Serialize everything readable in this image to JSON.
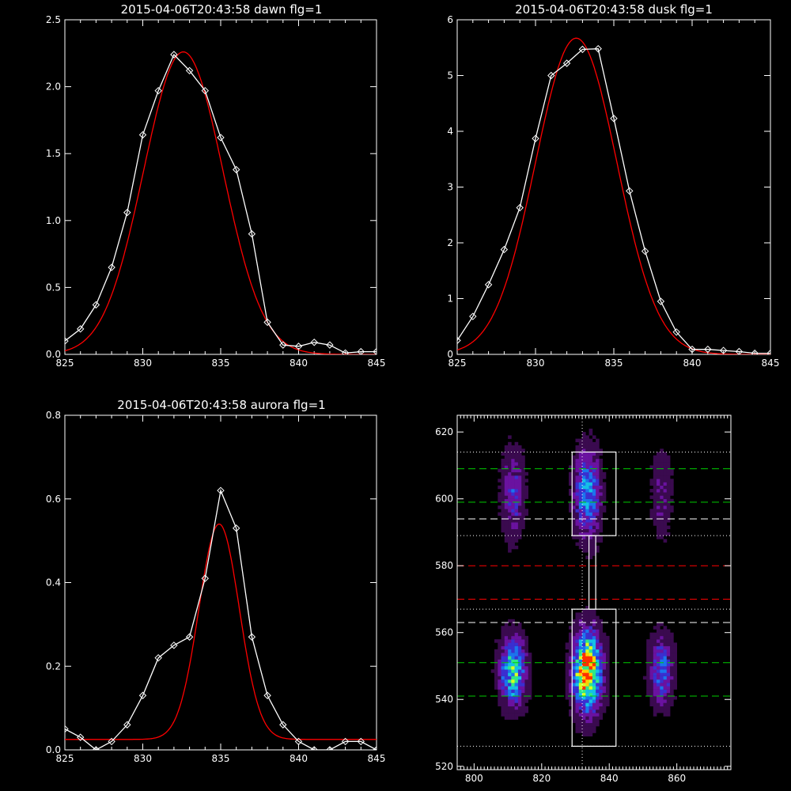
{
  "colors": {
    "background": "#000000",
    "axes": "#ffffff",
    "data": "#ffffff",
    "fit": "#ff0000",
    "green_dash": "#00cc00",
    "red_dash": "#ff0000"
  },
  "chart_data": [
    {
      "id": "dawn",
      "type": "line",
      "title": "2015-04-06T20:43:58 dawn flg=1",
      "xlim": [
        825,
        845
      ],
      "ylim": [
        0,
        2.5
      ],
      "xticks": [
        825,
        830,
        835,
        840,
        845
      ],
      "yticks": [
        0.0,
        0.5,
        1.0,
        1.5,
        2.0,
        2.5
      ],
      "xticklabels": [
        "825",
        "830",
        "835",
        "840",
        "845"
      ],
      "yticklabels": [
        "0.0",
        "0.5",
        "1.0",
        "1.5",
        "2.0",
        "2.5"
      ],
      "series": [
        {
          "marker": "diamond",
          "color": "#ffffff",
          "x": [
            825,
            826,
            827,
            828,
            829,
            830,
            831,
            832,
            833,
            834,
            835,
            836,
            837,
            838,
            839,
            840,
            841,
            842,
            843,
            844,
            845
          ],
          "y": [
            0.1,
            0.19,
            0.37,
            0.65,
            1.06,
            1.64,
            1.97,
            2.24,
            2.12,
            1.97,
            1.62,
            1.38,
            0.9,
            0.24,
            0.07,
            0.06,
            0.09,
            0.07,
            0.01,
            0.02,
            0.02
          ]
        },
        {
          "kind": "gaussian_fit",
          "color": "#ff0000",
          "amplitude": 2.26,
          "center": 832.6,
          "sigma": 2.55,
          "offset": 0.0
        }
      ]
    },
    {
      "id": "dusk",
      "type": "line",
      "title": "2015-04-06T20:43:58 dusk flg=1",
      "xlim": [
        825,
        845
      ],
      "ylim": [
        0,
        6
      ],
      "xticks": [
        825,
        830,
        835,
        840,
        845
      ],
      "yticks": [
        0,
        1,
        2,
        3,
        4,
        5,
        6
      ],
      "xticklabels": [
        "825",
        "830",
        "835",
        "840",
        "845"
      ],
      "yticklabels": [
        "0",
        "1",
        "2",
        "3",
        "4",
        "5",
        "6"
      ],
      "series": [
        {
          "marker": "diamond",
          "color": "#ffffff",
          "x": [
            825,
            826,
            827,
            828,
            829,
            830,
            831,
            832,
            833,
            834,
            835,
            836,
            837,
            838,
            839,
            840,
            841,
            842,
            843,
            844,
            845
          ],
          "y": [
            0.25,
            0.68,
            1.25,
            1.88,
            2.63,
            3.87,
            5.0,
            5.22,
            5.47,
            5.48,
            4.23,
            2.93,
            1.85,
            0.95,
            0.4,
            0.09,
            0.09,
            0.07,
            0.05,
            0.02,
            0.02
          ]
        },
        {
          "kind": "gaussian_fit",
          "color": "#ff0000",
          "amplitude": 5.67,
          "center": 832.6,
          "sigma": 2.6,
          "offset": 0.0
        }
      ]
    },
    {
      "id": "aurora",
      "type": "line",
      "title": "2015-04-06T20:43:58 aurora flg=1",
      "xlim": [
        825,
        845
      ],
      "ylim": [
        0,
        0.8
      ],
      "xticks": [
        825,
        830,
        835,
        840,
        845
      ],
      "yticks": [
        0.0,
        0.2,
        0.4,
        0.6,
        0.8
      ],
      "xticklabels": [
        "825",
        "830",
        "835",
        "840",
        "845"
      ],
      "yticklabels": [
        "0.0",
        "0.2",
        "0.4",
        "0.6",
        "0.8"
      ],
      "series": [
        {
          "marker": "diamond",
          "color": "#ffffff",
          "x": [
            825,
            826,
            827,
            828,
            829,
            830,
            831,
            832,
            833,
            834,
            835,
            836,
            837,
            838,
            839,
            840,
            841,
            842,
            843,
            844,
            845
          ],
          "y": [
            0.05,
            0.03,
            0.0,
            0.02,
            0.06,
            0.13,
            0.22,
            0.25,
            0.27,
            0.41,
            0.62,
            0.53,
            0.27,
            0.13,
            0.06,
            0.02,
            0.0,
            0.0,
            0.02,
            0.02,
            0.0
          ]
        },
        {
          "kind": "gaussian_fit",
          "color": "#ff0000",
          "amplitude": 0.515,
          "center": 834.9,
          "sigma": 1.3,
          "offset": 0.025
        }
      ]
    },
    {
      "id": "image",
      "type": "heatmap",
      "title": "",
      "xlim": [
        795,
        876
      ],
      "ylim": [
        519,
        625
      ],
      "xticks": [
        800,
        820,
        840,
        860
      ],
      "yticks": [
        520,
        540,
        560,
        580,
        600,
        620
      ],
      "xticklabels": [
        "800",
        "820",
        "840",
        "860"
      ],
      "yticklabels": [
        "520",
        "540",
        "560",
        "580",
        "600",
        "620"
      ],
      "colormap": [
        "#000000",
        "#3a0a4f",
        "#6a12a0",
        "#3a2fd0",
        "#1b74ee",
        "#15c0e6",
        "#2ee88a",
        "#d8ff20",
        "#ffd000",
        "#ff3000"
      ],
      "blobs": [
        {
          "x": 811,
          "y": 548,
          "sx": 2.6,
          "sy": 7,
          "amp": 0.62
        },
        {
          "x": 811,
          "y": 601,
          "sx": 2.3,
          "sy": 9,
          "amp": 0.3
        },
        {
          "x": 833,
          "y": 548,
          "sx": 2.8,
          "sy": 8,
          "amp": 0.98
        },
        {
          "x": 833,
          "y": 601,
          "sx": 2.6,
          "sy": 9,
          "amp": 0.5
        },
        {
          "x": 855,
          "y": 548,
          "sx": 2.4,
          "sy": 7,
          "amp": 0.4
        },
        {
          "x": 855,
          "y": 601,
          "sx": 2.3,
          "sy": 9,
          "amp": 0.18
        }
      ],
      "vline_x": 832,
      "hlines": [
        {
          "y": 614,
          "style": "dotted",
          "color": "#ffffff"
        },
        {
          "y": 609,
          "style": "dashed",
          "color": "#00cc00"
        },
        {
          "y": 599,
          "style": "dashed",
          "color": "#00cc00"
        },
        {
          "y": 594,
          "style": "dashed",
          "color": "#ffffff"
        },
        {
          "y": 589,
          "style": "dotted",
          "color": "#ffffff"
        },
        {
          "y": 580,
          "style": "dashed",
          "color": "#ff0000"
        },
        {
          "y": 570,
          "style": "dashed",
          "color": "#ff0000"
        },
        {
          "y": 567,
          "style": "dotted",
          "color": "#ffffff"
        },
        {
          "y": 563,
          "style": "dashed",
          "color": "#ffffff"
        },
        {
          "y": 551,
          "style": "dashed",
          "color": "#00cc00"
        },
        {
          "y": 541,
          "style": "dashed",
          "color": "#00cc00"
        },
        {
          "y": 526,
          "style": "dotted",
          "color": "#ffffff"
        }
      ],
      "boxes": [
        {
          "x0": 829,
          "x1": 842,
          "y0": 589,
          "y1": 614
        },
        {
          "x0": 829,
          "x1": 842,
          "y0": 526,
          "y1": 567
        },
        {
          "x0": 834,
          "x1": 836,
          "y0": 567,
          "y1": 589
        }
      ]
    }
  ]
}
